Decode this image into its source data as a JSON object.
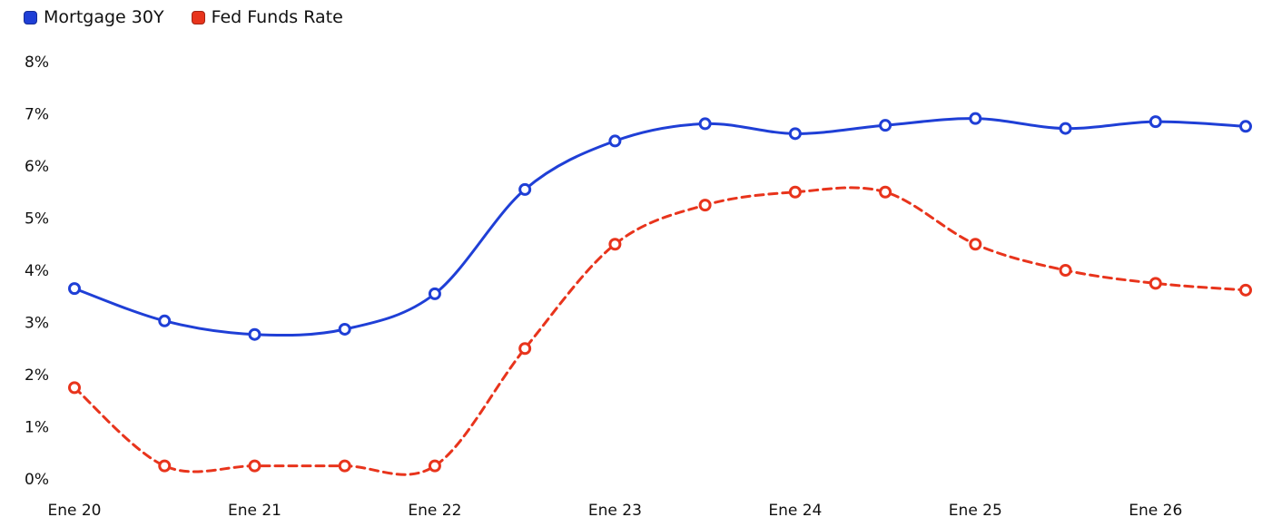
{
  "chart_data": {
    "type": "line",
    "title": "",
    "xlabel": "",
    "ylabel": "",
    "ylim": [
      0,
      8
    ],
    "yticks": [
      "0%",
      "1%",
      "2%",
      "3%",
      "4%",
      "5%",
      "6%",
      "7%",
      "8%"
    ],
    "xticks": [
      "Ene 20",
      "Ene 21",
      "Ene 22",
      "Ene 23",
      "Ene 24",
      "Ene 25",
      "Ene 26"
    ],
    "x": [
      "Ene 20",
      "Jul 20",
      "Ene 21",
      "Jul 21",
      "Ene 22",
      "Jul 22",
      "Ene 23",
      "Jul 23",
      "Ene 24",
      "Jul 24",
      "Ene 25",
      "Jul 25",
      "Ene 26",
      "Jul 26"
    ],
    "grid": false,
    "legend_position": "top-left",
    "series": [
      {
        "name": "Mortgage 30Y",
        "color": "#1f3fd6",
        "line_style": "solid",
        "values": [
          3.65,
          3.03,
          2.77,
          2.87,
          3.55,
          5.55,
          6.48,
          6.81,
          6.62,
          6.78,
          6.91,
          6.72,
          6.85,
          6.76
        ]
      },
      {
        "name": "Fed Funds Rate",
        "color": "#e8341c",
        "line_style": "dashed",
        "values": [
          1.75,
          0.25,
          0.25,
          0.25,
          0.25,
          2.5,
          4.5,
          5.25,
          5.5,
          5.5,
          4.5,
          4.0,
          3.75,
          3.62
        ]
      }
    ]
  }
}
